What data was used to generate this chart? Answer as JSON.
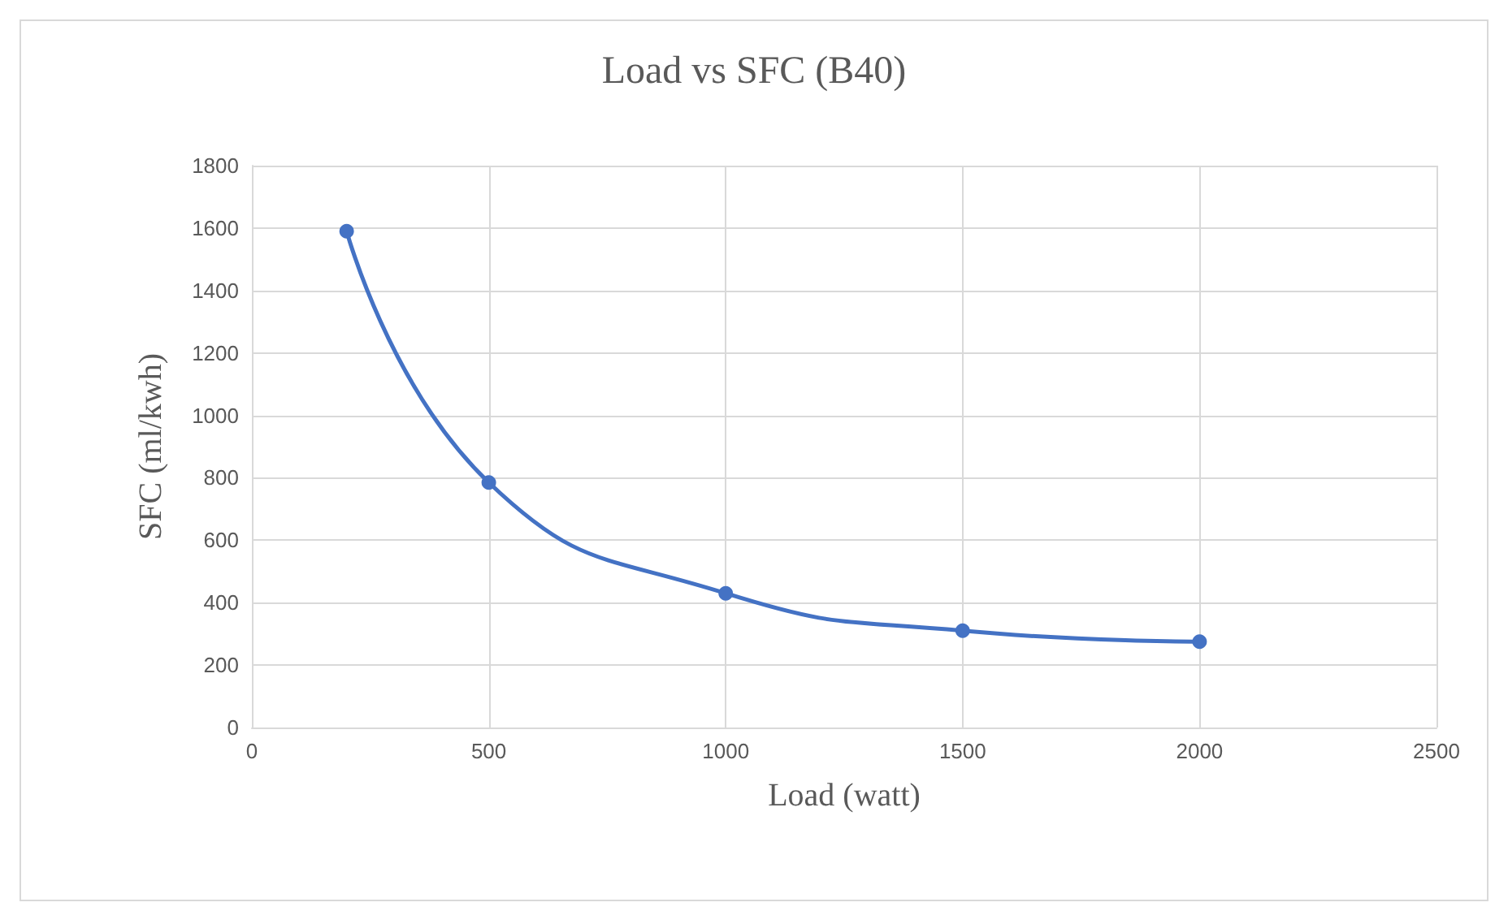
{
  "chart_data": {
    "type": "line",
    "title": "Load vs SFC (B40)",
    "xlabel": "Load (watt)",
    "ylabel": "SFC (ml/kwh)",
    "series": [
      {
        "color": "#4472c4",
        "x": [
          200,
          500,
          1000,
          1500,
          2000
        ],
        "values": [
          1590,
          785,
          430,
          310,
          275
        ]
      }
    ],
    "xlim": [
      0,
      2500
    ],
    "xticks": [
      0,
      500,
      1000,
      1500,
      2000,
      2500
    ],
    "ylim": [
      0,
      1800
    ],
    "yticks": [
      0,
      200,
      400,
      600,
      800,
      1000,
      1200,
      1400,
      1600,
      1800
    ],
    "grid": true,
    "marker": "circle",
    "line_style": "solid"
  }
}
